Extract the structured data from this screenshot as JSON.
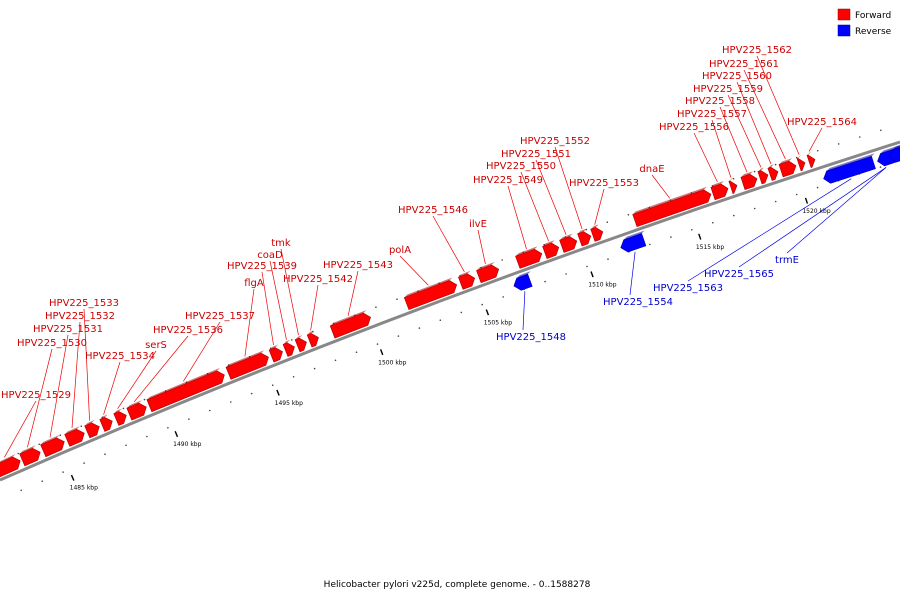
{
  "caption": "Helicobacter pylori v225d, complete genome. - 0..1588278",
  "legend": {
    "forward": {
      "label": "Forward",
      "color": "#ff0000"
    },
    "reverse": {
      "label": "Reverse",
      "color": "#0000ff"
    }
  },
  "colors": {
    "backbone": "#888888",
    "forward_text": "#cc0000",
    "reverse_text": "#0000cc"
  },
  "ticks": [
    "1485 kbp",
    "1490 kbp",
    "1495 kbp",
    "1500 kbp",
    "1505 kbp",
    "1510 kbp",
    "1515 kbp",
    "1520 kbp"
  ],
  "genes_forward": [
    {
      "label": "HPV225_1529"
    },
    {
      "label": "HPV225_1530"
    },
    {
      "label": "HPV225_1531"
    },
    {
      "label": "HPV225_1532"
    },
    {
      "label": "HPV225_1533"
    },
    {
      "label": "HPV225_1534"
    },
    {
      "label": "serS"
    },
    {
      "label": "HPV225_1536"
    },
    {
      "label": "HPV225_1537"
    },
    {
      "label": "flgA"
    },
    {
      "label": "HPV225_1539"
    },
    {
      "label": "coaD"
    },
    {
      "label": "tmk"
    },
    {
      "label": "HPV225_1542"
    },
    {
      "label": "HPV225_1543"
    },
    {
      "label": "polA"
    },
    {
      "label": "HPV225_1546"
    },
    {
      "label": "ilvE"
    },
    {
      "label": "HPV225_1549"
    },
    {
      "label": "HPV225_1550"
    },
    {
      "label": "HPV225_1551"
    },
    {
      "label": "HPV225_1552"
    },
    {
      "label": "HPV225_1553"
    },
    {
      "label": "dnaE"
    },
    {
      "label": "HPV225_1556"
    },
    {
      "label": "HPV225_1557"
    },
    {
      "label": "HPV225_1558"
    },
    {
      "label": "HPV225_1559"
    },
    {
      "label": "HPV225_1560"
    },
    {
      "label": "HPV225_1561"
    },
    {
      "label": "HPV225_1562"
    },
    {
      "label": "HPV225_1564"
    }
  ],
  "genes_reverse": [
    {
      "label": "HPV225_1548"
    },
    {
      "label": "HPV225_1554"
    },
    {
      "label": "HPV225_1563"
    },
    {
      "label": "HPV225_1565"
    },
    {
      "label": "trmE"
    }
  ]
}
